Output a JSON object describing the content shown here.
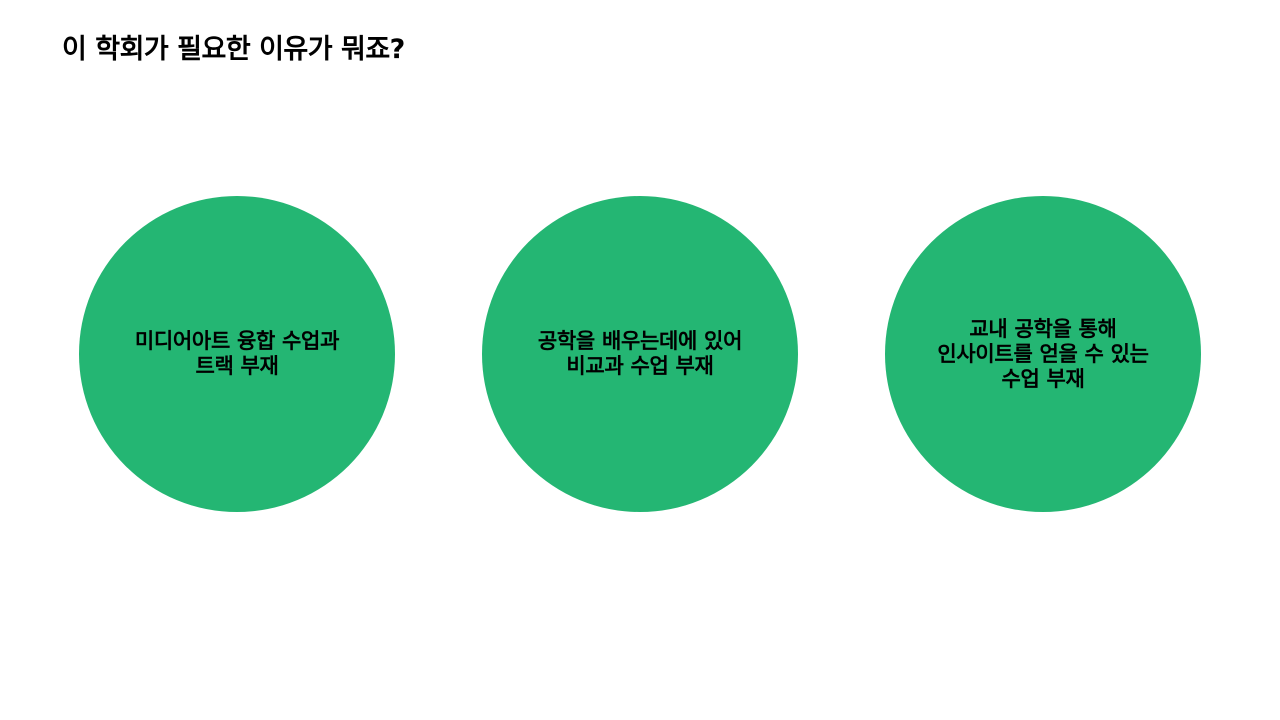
{
  "title": "이 학회가 필요한 이유가 뭐죠?",
  "accent_color": "#24b673",
  "reasons": [
    {
      "lines": [
        "미디어아트 융합 수업과",
        "트랙 부재"
      ]
    },
    {
      "lines": [
        "공학을 배우는데에 있어",
        "비교과 수업 부재"
      ]
    },
    {
      "lines": [
        "교내 공학을 통해",
        "인사이트를 얻을 수 있는",
        "수업 부재"
      ]
    }
  ]
}
